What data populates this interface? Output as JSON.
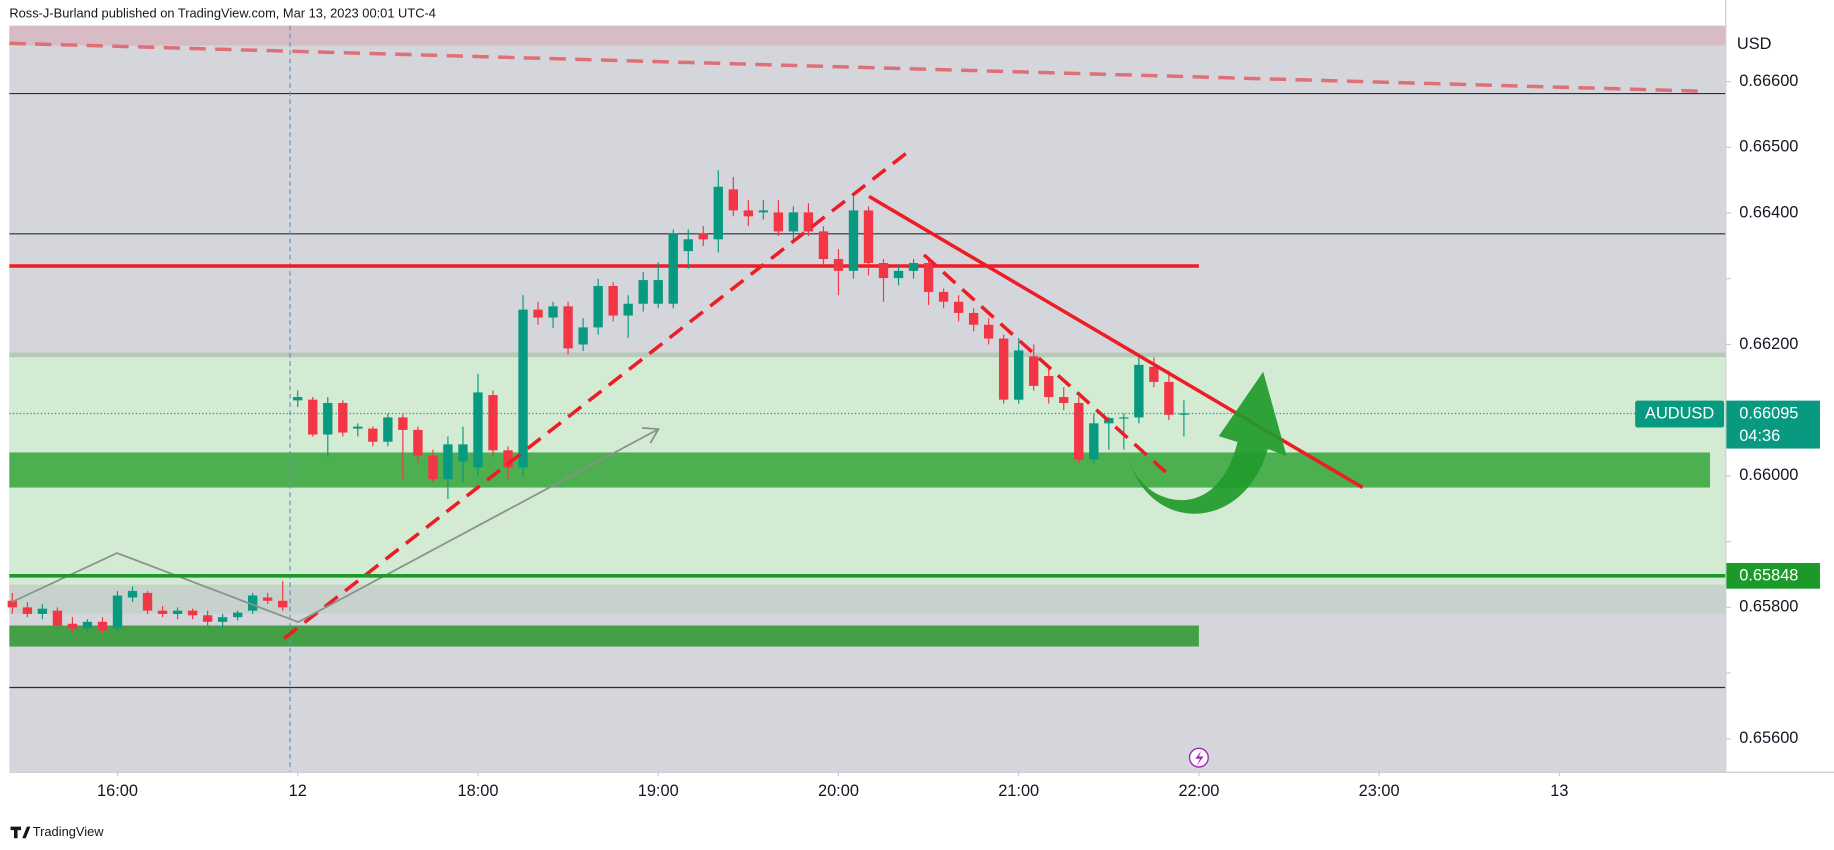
{
  "header": {
    "text": "Ross-J-Burland published on TradingView.com, Mar 13, 2023 00:01 UTC-4"
  },
  "footer": {
    "brand": "TradingView"
  },
  "chart_data": {
    "type": "candlestick",
    "currency": "USD",
    "symbol": "AUDUSD",
    "last_price": 0.66095,
    "countdown": "04:36",
    "marked_level": 0.65848,
    "up_color": "#089981",
    "down_color": "#f23645",
    "xlim": [
      15.4,
      24.92
    ],
    "ylim": [
      0.6555,
      0.66685
    ],
    "xticks": [
      {
        "value": 16,
        "label": "16:00"
      },
      {
        "value": 17,
        "label": "12"
      },
      {
        "value": 18,
        "label": "18:00"
      },
      {
        "value": 19,
        "label": "19:00"
      },
      {
        "value": 20,
        "label": "20:00"
      },
      {
        "value": 21,
        "label": "21:00"
      },
      {
        "value": 22,
        "label": "22:00"
      },
      {
        "value": 23,
        "label": "23:00"
      },
      {
        "value": 24,
        "label": "13"
      }
    ],
    "yticks": [
      {
        "value": 0.656,
        "label": "0.65600"
      },
      {
        "value": 0.657,
        "label": "0.65700"
      },
      {
        "value": 0.658,
        "label": "0.65800"
      },
      {
        "value": 0.659,
        "label": "0.65900"
      },
      {
        "value": 0.66,
        "label": "0.66000"
      },
      {
        "value": 0.661,
        "label": "0.66100"
      },
      {
        "value": 0.662,
        "label": "0.66200"
      },
      {
        "value": 0.663,
        "label": "0.66300"
      },
      {
        "value": 0.664,
        "label": "0.66400"
      },
      {
        "value": 0.665,
        "label": "0.66500"
      },
      {
        "value": 0.666,
        "label": "0.66600"
      }
    ],
    "hidden_yticks": [
      1,
      3,
      5,
      7
    ],
    "x": [
      15.4167,
      15.5,
      15.5833,
      15.6667,
      15.75,
      15.8333,
      15.9167,
      16,
      16.0833,
      16.1667,
      16.25,
      16.3333,
      16.4167,
      16.5,
      16.5833,
      16.6667,
      16.75,
      16.8333,
      16.9167,
      17,
      17.0833,
      17.1667,
      17.25,
      17.3333,
      17.4167,
      17.5,
      17.5833,
      17.6667,
      17.75,
      17.8333,
      17.9167,
      18,
      18.0833,
      18.1667,
      18.25,
      18.3333,
      18.4167,
      18.5,
      18.5833,
      18.6667,
      18.75,
      18.8333,
      18.9167,
      19,
      19.0833,
      19.1667,
      19.25,
      19.3333,
      19.4167,
      19.5,
      19.5833,
      19.6667,
      19.75,
      19.8333,
      19.9167,
      20,
      20.0833,
      20.1667,
      20.25,
      20.3333,
      20.4167,
      20.5,
      20.5833,
      20.6667,
      20.75,
      20.8333,
      20.9167,
      21,
      21.0833,
      21.1667,
      21.25,
      21.3333,
      21.4167,
      21.5,
      21.5833,
      21.6667,
      21.75,
      21.8333,
      21.9167
    ],
    "open": [
      0.6581,
      0.658,
      0.6579,
      0.65795,
      0.65775,
      0.65768,
      0.65778,
      0.65768,
      0.65815,
      0.65822,
      0.65795,
      0.6579,
      0.65795,
      0.65788,
      0.65778,
      0.65785,
      0.65795,
      0.65815,
      0.6581,
      0.66115,
      0.66116,
      0.66063,
      0.66111,
      0.66072,
      0.66072,
      0.66052,
      0.66089,
      0.6607,
      0.66031,
      0.65995,
      0.66022,
      0.66013,
      0.66123,
      0.66039,
      0.66013,
      0.66253,
      0.66241,
      0.66258,
      0.662,
      0.66226,
      0.66289,
      0.66244,
      0.66262,
      0.66262,
      0.66262,
      0.66342,
      0.66369,
      0.6636,
      0.66436,
      0.66404,
      0.66401,
      0.66401,
      0.66372,
      0.66401,
      0.66372,
      0.6633,
      0.66312,
      0.66404,
      0.66324,
      0.66301,
      0.66312,
      0.66324,
      0.6628,
      0.66265,
      0.66248,
      0.6623,
      0.66209,
      0.66116,
      0.66182,
      0.66152,
      0.6612,
      0.66111,
      0.66025,
      0.6608,
      0.66088,
      0.66089,
      0.66166,
      0.66143,
      0.66093
    ],
    "high": [
      0.65822,
      0.65808,
      0.65805,
      0.658,
      0.65785,
      0.65782,
      0.65785,
      0.65825,
      0.65832,
      0.65825,
      0.65802,
      0.658,
      0.65798,
      0.65795,
      0.6579,
      0.65795,
      0.65822,
      0.65822,
      0.6584,
      0.6613,
      0.6612,
      0.6612,
      0.66115,
      0.6608,
      0.66075,
      0.66095,
      0.66095,
      0.66075,
      0.6604,
      0.6606,
      0.66075,
      0.66155,
      0.6613,
      0.66045,
      0.66275,
      0.66265,
      0.66265,
      0.66265,
      0.6624,
      0.663,
      0.66295,
      0.66275,
      0.6631,
      0.66325,
      0.66375,
      0.66375,
      0.6638,
      0.66465,
      0.66455,
      0.6642,
      0.6642,
      0.6642,
      0.6641,
      0.66415,
      0.6638,
      0.66345,
      0.66425,
      0.6641,
      0.6633,
      0.6632,
      0.6633,
      0.6633,
      0.66285,
      0.66275,
      0.66255,
      0.6624,
      0.66215,
      0.6621,
      0.662,
      0.66165,
      0.66135,
      0.6612,
      0.66095,
      0.6609,
      0.66095,
      0.6618,
      0.6618,
      0.6616,
      0.66115
    ],
    "low": [
      0.6579,
      0.65785,
      0.65782,
      0.65768,
      0.65762,
      0.65762,
      0.6576,
      0.65762,
      0.65808,
      0.6579,
      0.65785,
      0.65782,
      0.65782,
      0.65772,
      0.6577,
      0.6578,
      0.6579,
      0.65805,
      0.65795,
      0.66105,
      0.6606,
      0.6603,
      0.6606,
      0.6606,
      0.66045,
      0.66045,
      0.65995,
      0.6602,
      0.6599,
      0.65965,
      0.6599,
      0.66,
      0.6603,
      0.65995,
      0.66,
      0.6623,
      0.66225,
      0.66185,
      0.6619,
      0.66215,
      0.66235,
      0.6621,
      0.6625,
      0.66255,
      0.66255,
      0.66315,
      0.6635,
      0.6634,
      0.66395,
      0.6638,
      0.6639,
      0.66365,
      0.6636,
      0.66365,
      0.6632,
      0.66275,
      0.663,
      0.66305,
      0.66265,
      0.6629,
      0.663,
      0.6626,
      0.66255,
      0.66235,
      0.6622,
      0.662,
      0.6611,
      0.6611,
      0.6613,
      0.6611,
      0.661,
      0.6602,
      0.6602,
      0.6604,
      0.6604,
      0.6608,
      0.66135,
      0.66085,
      0.6606
    ],
    "close": [
      0.658,
      0.6579,
      0.65798,
      0.65772,
      0.65768,
      0.65778,
      0.65765,
      0.65818,
      0.65825,
      0.65795,
      0.6579,
      0.65795,
      0.65788,
      0.65778,
      0.65785,
      0.65792,
      0.65818,
      0.6581,
      0.658,
      0.6612,
      0.66063,
      0.66111,
      0.66066,
      0.66075,
      0.66052,
      0.66089,
      0.6607,
      0.66031,
      0.65995,
      0.66048,
      0.66048,
      0.66127,
      0.66039,
      0.66013,
      0.66253,
      0.66241,
      0.66258,
      0.66194,
      0.66226,
      0.66289,
      0.66244,
      0.66262,
      0.66298,
      0.66298,
      0.66369,
      0.6636,
      0.6636,
      0.6644,
      0.66404,
      0.66395,
      0.66404,
      0.66372,
      0.66401,
      0.66372,
      0.6633,
      0.66312,
      0.66404,
      0.66324,
      0.66301,
      0.66312,
      0.66324,
      0.6628,
      0.66265,
      0.66248,
      0.6623,
      0.66209,
      0.66116,
      0.66191,
      0.66137,
      0.6612,
      0.66111,
      0.66025,
      0.6608,
      0.66088,
      0.66089,
      0.66169,
      0.66143,
      0.66093,
      0.66095
    ]
  }
}
